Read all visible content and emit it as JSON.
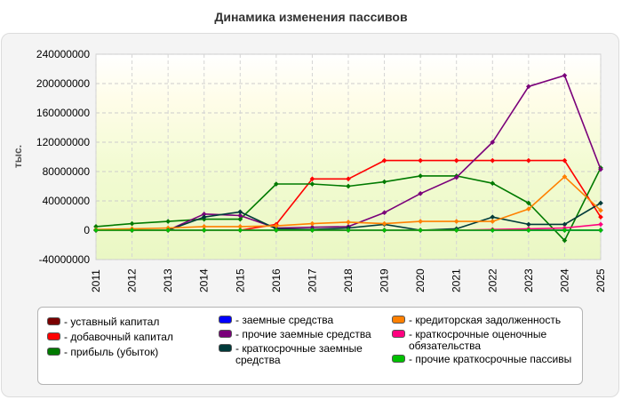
{
  "title": "Динамика изменения пассивов",
  "chart_data": {
    "type": "line",
    "title": "Динамика изменения пассивов",
    "ylabel": "тыс.",
    "xlabel": "",
    "ylim": [
      -40000000,
      240000000
    ],
    "yticks": [
      "240000000",
      "200000000",
      "160000000",
      "120000000",
      "80000000",
      "40000000",
      "0",
      "-40000000"
    ],
    "ytick_values": [
      240000000,
      200000000,
      160000000,
      120000000,
      80000000,
      40000000,
      0,
      -40000000
    ],
    "categories": [
      "2011",
      "2012",
      "2013",
      "2014",
      "2015",
      "2016",
      "2017",
      "2018",
      "2019",
      "2020",
      "2021",
      "2022",
      "2023",
      "2024",
      "2025"
    ],
    "grid": true,
    "legend_position": "bottom",
    "series": [
      {
        "name": "уставный капитал",
        "color": "#7a0000",
        "values": [
          100000,
          100000,
          100000,
          100000,
          100000,
          100000,
          100000,
          100000,
          100000,
          100000,
          100000,
          100000,
          100000,
          100000,
          100000
        ]
      },
      {
        "name": "добавочный капитал",
        "color": "#ff0000",
        "values": [
          0,
          0,
          0,
          0,
          0,
          8000000,
          70000000,
          70000000,
          95000000,
          95000000,
          95000000,
          95000000,
          95000000,
          95000000,
          18000000
        ]
      },
      {
        "name": "прибыль (убыток)",
        "color": "#007a00",
        "values": [
          5000000,
          9000000,
          12000000,
          15000000,
          15000000,
          63000000,
          63000000,
          60000000,
          66000000,
          74000000,
          74000000,
          64000000,
          37000000,
          -14000000,
          85000000
        ]
      },
      {
        "name": "заемные средства",
        "color": "#0000ff",
        "values": [
          0,
          0,
          0,
          0,
          0,
          0,
          0,
          0,
          0,
          0,
          0,
          0,
          0,
          0,
          0
        ]
      },
      {
        "name": "прочие заемные средства",
        "color": "#7a007a",
        "values": [
          0,
          0,
          0,
          22000000,
          20000000,
          3000000,
          4000000,
          5000000,
          24000000,
          50000000,
          72000000,
          120000000,
          196000000,
          211000000,
          83000000
        ]
      },
      {
        "name": "краткосрочные заемные средства",
        "color": "#003a3a",
        "values": [
          0,
          0,
          0,
          18000000,
          25000000,
          2000000,
          1000000,
          3000000,
          8000000,
          0,
          2000000,
          18000000,
          8000000,
          8000000,
          37000000
        ]
      },
      {
        "name": "кредиторская задолженность",
        "color": "#ff8000",
        "values": [
          1000000,
          2000000,
          3000000,
          5000000,
          5000000,
          6000000,
          9000000,
          11000000,
          9000000,
          12000000,
          12000000,
          12000000,
          29000000,
          73000000,
          27000000
        ]
      },
      {
        "name": "краткосрочные оценочные обязательства",
        "color": "#ff0080",
        "values": [
          0,
          0,
          0,
          0,
          0,
          0,
          0,
          0,
          0,
          0,
          0,
          1000000,
          2000000,
          3000000,
          8000000
        ]
      },
      {
        "name": "прочие краткосрочные пассивы",
        "color": "#00c000",
        "values": [
          0,
          0,
          0,
          0,
          0,
          0,
          0,
          0,
          0,
          0,
          0,
          0,
          0,
          0,
          0
        ]
      }
    ]
  },
  "legend": {
    "items": [
      {
        "label": "уставный капитал",
        "color": "#7a0000"
      },
      {
        "label": "добавочный капитал",
        "color": "#ff0000"
      },
      {
        "label": "прибыль (убыток)",
        "color": "#007a00"
      },
      {
        "label": "заемные средства",
        "color": "#0000ff"
      },
      {
        "label": "прочие заемные средства",
        "color": "#7a007a"
      },
      {
        "label": "краткосрочные заемные средства",
        "color": "#003a3a"
      },
      {
        "label": "кредиторская задолженность",
        "color": "#ff8000"
      },
      {
        "label": "краткосрочные оценочные обязательства",
        "color": "#ff0080"
      },
      {
        "label": "прочие краткосрочные пассивы",
        "color": "#00c000"
      }
    ]
  }
}
